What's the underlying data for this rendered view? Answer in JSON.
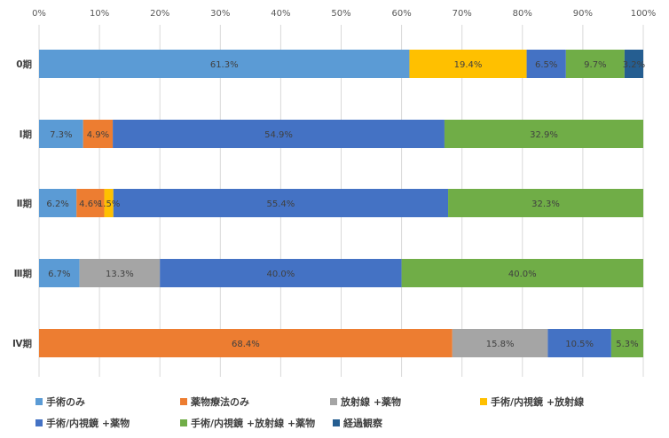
{
  "chart_data": {
    "type": "bar",
    "orientation": "horizontal",
    "stacked": "percent",
    "title": "",
    "xlabel": "",
    "ylabel": "",
    "xlim": [
      0,
      100
    ],
    "x_ticks": [
      "0%",
      "10%",
      "20%",
      "30%",
      "40%",
      "50%",
      "60%",
      "70%",
      "80%",
      "90%",
      "100%"
    ],
    "grid": "vertical",
    "legend_position": "bottom",
    "categories": [
      "0期",
      "Ⅰ期",
      "Ⅱ期",
      "Ⅲ期",
      "Ⅳ期"
    ],
    "series": [
      {
        "name": "手術のみ",
        "color": "#5B9BD5",
        "values": [
          61.3,
          7.3,
          6.2,
          6.7,
          0
        ],
        "labels": [
          "61.3%",
          "7.3%",
          "6.2%",
          "6.7%",
          ""
        ]
      },
      {
        "name": "薬物療法のみ",
        "color": "#ED7D31",
        "values": [
          0,
          4.9,
          4.6,
          0,
          68.4
        ],
        "labels": [
          "",
          "4.9%",
          "4.6%",
          "",
          "68.4%"
        ]
      },
      {
        "name": "放射線 +薬物",
        "color": "#A5A5A5",
        "values": [
          0,
          0,
          0,
          13.3,
          15.8
        ],
        "labels": [
          "",
          "",
          "",
          "13.3%",
          "15.8%"
        ]
      },
      {
        "name": "手術/内視鏡 +放射線",
        "color": "#FFC000",
        "values": [
          19.4,
          0,
          1.5,
          0,
          0
        ],
        "labels": [
          "19.4%",
          "",
          "1.5%",
          "",
          ""
        ]
      },
      {
        "name": "手術/内視鏡 +薬物",
        "color": "#4472C4",
        "values": [
          6.5,
          54.9,
          55.4,
          40.0,
          10.5
        ],
        "labels": [
          "6.5%",
          "54.9%",
          "55.4%",
          "40.0%",
          "10.5%"
        ]
      },
      {
        "name": "手術/内視鏡 +放射線 +薬物",
        "color": "#70AD47",
        "values": [
          9.7,
          32.9,
          32.3,
          40.0,
          5.3
        ],
        "labels": [
          "9.7%",
          "32.9%",
          "32.3%",
          "40.0%",
          "5.3%"
        ]
      },
      {
        "name": "経過観察",
        "color": "#255E91",
        "values": [
          3.2,
          0,
          0,
          0,
          0
        ],
        "labels": [
          "3.2%",
          "",
          "",
          "",
          ""
        ]
      }
    ]
  }
}
